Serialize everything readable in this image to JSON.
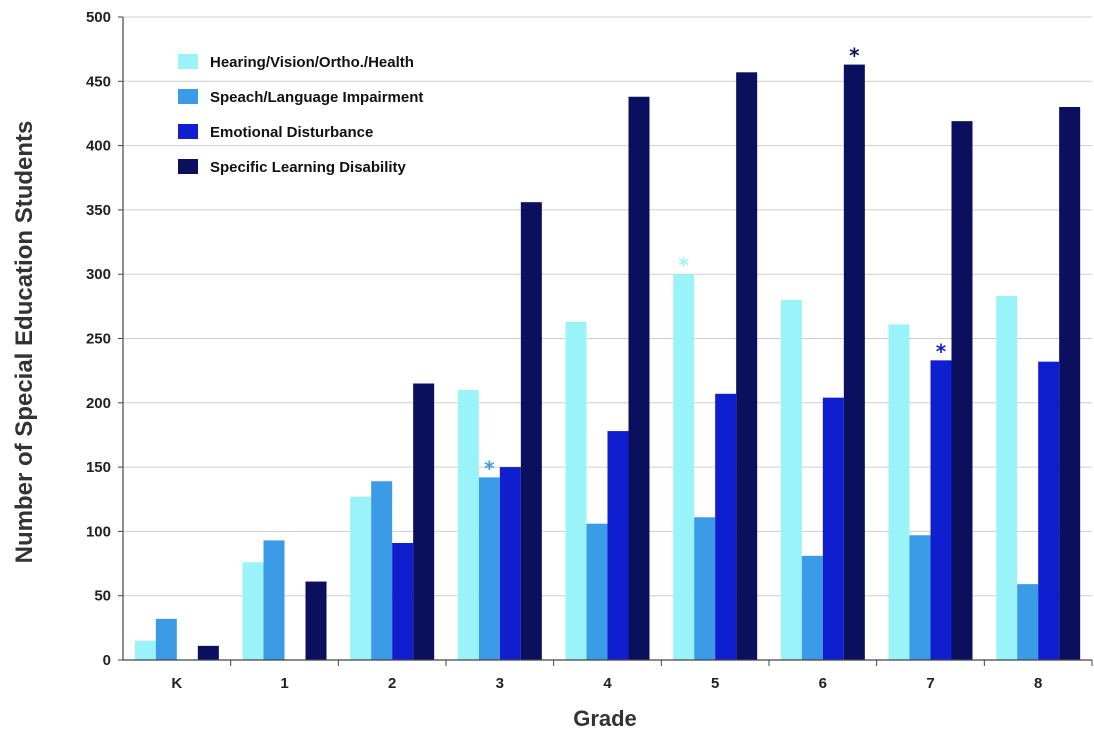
{
  "chart_data": {
    "type": "bar",
    "xlabel": "Grade",
    "ylabel": "Number of Special Education Students",
    "ylim": [
      0,
      500
    ],
    "yticks": [
      0,
      50,
      100,
      150,
      200,
      250,
      300,
      350,
      400,
      450,
      500
    ],
    "grid": true,
    "legend_position": "top-left",
    "categories": [
      "K",
      "1",
      "2",
      "3",
      "4",
      "5",
      "6",
      "7",
      "8"
    ],
    "series": [
      {
        "name": "Hearing/Vision/Ortho./Health",
        "color": "#99F3F8",
        "values": [
          15,
          76,
          127,
          210,
          263,
          300,
          280,
          261,
          283
        ]
      },
      {
        "name": "Speach/Language Impairment",
        "color": "#3C9BE6",
        "values": [
          32,
          93,
          139,
          142,
          106,
          111,
          81,
          97,
          59
        ]
      },
      {
        "name": "Emotional Disturbance",
        "color": "#0F1ECF",
        "values": [
          0,
          0,
          91,
          150,
          178,
          207,
          204,
          233,
          232
        ]
      },
      {
        "name": "Specific Learning Disability",
        "color": "#0A0F5E",
        "values": [
          11,
          61,
          215,
          356,
          438,
          457,
          463,
          419,
          430
        ]
      }
    ],
    "annotations": [
      {
        "text": "*",
        "category": "3",
        "series": 1
      },
      {
        "text": "*",
        "category": "5",
        "series": 0
      },
      {
        "text": "*",
        "category": "6",
        "series": 3
      },
      {
        "text": "*",
        "category": "7",
        "series": 2
      }
    ]
  }
}
